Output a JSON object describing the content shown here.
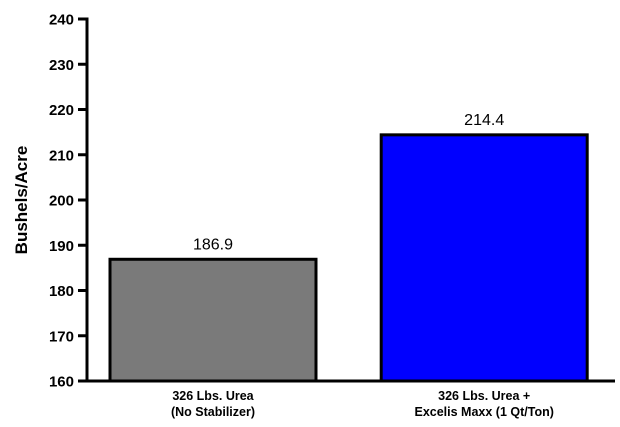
{
  "chart_data": {
    "type": "bar",
    "title": "",
    "xlabel": "",
    "ylabel": "Bushels/Acre",
    "ylim": [
      160,
      240
    ],
    "yticks": [
      160,
      170,
      180,
      190,
      200,
      210,
      220,
      230,
      240
    ],
    "grid": false,
    "categories": [
      [
        "326 Lbs. Urea",
        "(No Stabilizer)"
      ],
      [
        "326 Lbs. Urea +",
        "Excelis Maxx (1 Qt/Ton)"
      ]
    ],
    "values": [
      186.9,
      214.4
    ],
    "data_labels": [
      "186.9",
      "214.4"
    ],
    "colors": [
      "#7a7a7a",
      "#0000ff"
    ]
  }
}
